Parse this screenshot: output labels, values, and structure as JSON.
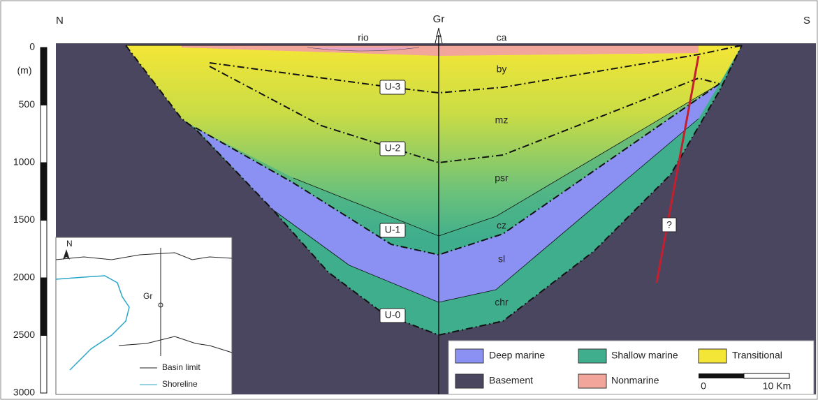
{
  "header": {
    "north": "N",
    "south": "S",
    "well": "Gr"
  },
  "depth_scale": {
    "labels": [
      "0",
      "500",
      "1000",
      "1500",
      "2000",
      "2500",
      "3000"
    ],
    "unit": "(m)"
  },
  "formations": {
    "rio": "rio",
    "ca": "ca",
    "by": "by",
    "mz": "mz",
    "psr": "psr",
    "cz": "cz",
    "sl": "sl",
    "chr": "chr"
  },
  "unconformities": [
    "U-3",
    "U-2",
    "U-1",
    "U-0"
  ],
  "fault_label": "?",
  "legend": {
    "items": [
      "Deep marine",
      "Shallow marine",
      "Transitional",
      "Basement",
      "Nonmarine"
    ],
    "scale": [
      "0",
      "10 Km"
    ]
  },
  "inset": {
    "north": "N",
    "well": "Gr",
    "legend": [
      "Basin limit",
      "Shoreline"
    ]
  }
}
